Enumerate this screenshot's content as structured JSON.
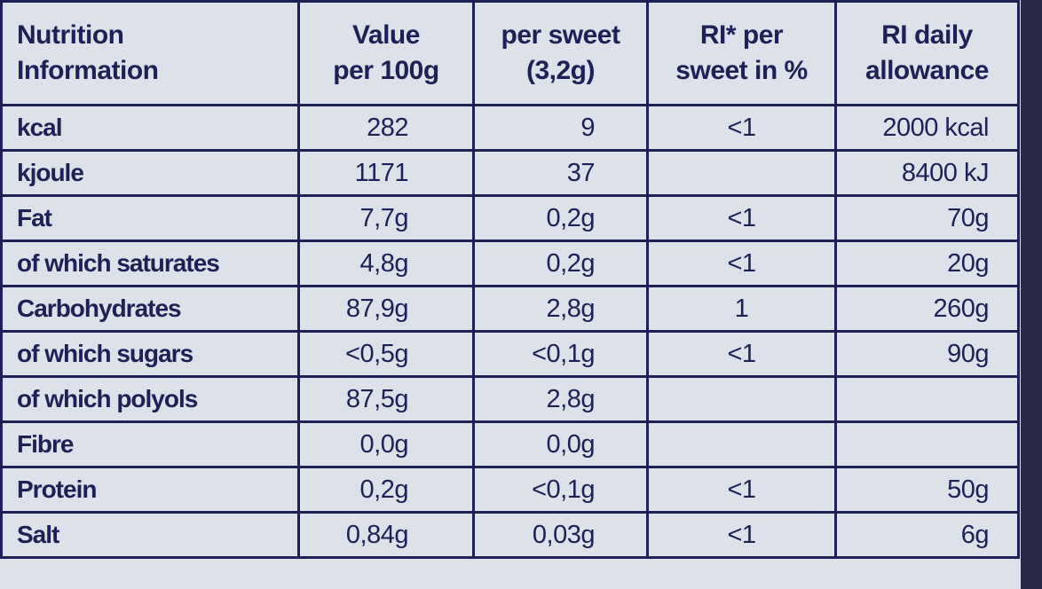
{
  "table": {
    "headers": [
      "Nutrition\nInformation",
      "Value\nper 100g",
      "per sweet\n(3,2g)",
      "RI* per\nsweet in %",
      "RI daily\nallowance"
    ],
    "rows": [
      {
        "label": "kcal",
        "value_100g": "282",
        "per_sweet": "9",
        "ri_percent": "<1",
        "ri_daily": "2000 kcal"
      },
      {
        "label": "kjoule",
        "value_100g": "1171",
        "per_sweet": "37",
        "ri_daily": "8400 kJ"
      },
      {
        "label": "Fat",
        "value_100g": "7,7g",
        "per_sweet": "0,2g",
        "ri_percent": "<1",
        "ri_daily": "70g"
      },
      {
        "label": "of which saturates",
        "value_100g": "4,8g",
        "per_sweet": "0,2g",
        "ri_percent": "<1",
        "ri_daily": "20g"
      },
      {
        "label": "Carbohydrates",
        "value_100g": "87,9g",
        "per_sweet": "2,8g",
        "ri_percent": "1",
        "ri_daily": "260g"
      },
      {
        "label": "of which sugars",
        "value_100g": "<0,5g",
        "per_sweet": "<0,1g",
        "ri_percent": "<1",
        "ri_daily": "90g"
      },
      {
        "label": "of which polyols",
        "value_100g": "87,5g",
        "per_sweet": "2,8g"
      },
      {
        "label": "Fibre",
        "value_100g": "0,0g",
        "per_sweet": "0,0g"
      },
      {
        "label": "Protein",
        "value_100g": "0,2g",
        "per_sweet": "<0,1g",
        "ri_percent": "<1",
        "ri_daily": "50g"
      },
      {
        "label": "Salt",
        "value_100g": "0,84g",
        "per_sweet": "0,03g",
        "ri_percent": "<1",
        "ri_daily": "6g"
      }
    ]
  }
}
